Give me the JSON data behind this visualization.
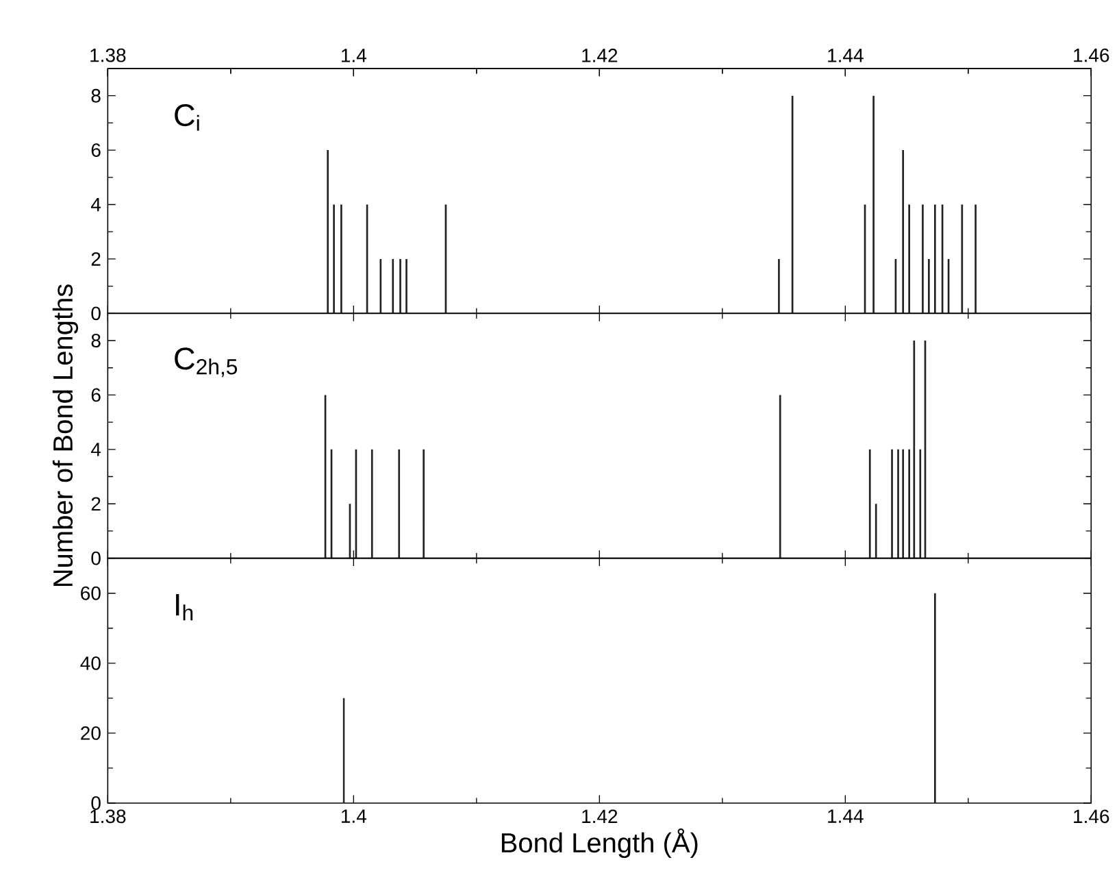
{
  "chart_data": [
    {
      "type": "bar",
      "annotations": [
        "C$_{i}$"
      ],
      "color": "#222222",
      "x": [
        1.3979,
        1.3984,
        1.399,
        1.4011,
        1.4022,
        1.4032,
        1.4038,
        1.4043,
        1.4075,
        1.4346,
        1.4357,
        1.4416,
        1.4423,
        1.4441,
        1.4447,
        1.4452,
        1.4463,
        1.4468,
        1.4473,
        1.4479,
        1.4484,
        1.4495,
        1.4506
      ],
      "values": [
        6,
        4,
        4,
        4,
        2,
        2,
        2,
        2,
        4,
        2,
        8,
        4,
        8,
        2,
        6,
        4,
        4,
        2,
        4,
        4,
        2,
        4,
        4
      ],
      "xlim": [
        1.38,
        1.46
      ],
      "xticks": [
        1.38,
        1.4,
        1.42,
        1.44,
        1.46
      ],
      "x2lim": [
        1.38,
        1.46
      ],
      "x2ticks": [
        1.38,
        1.4,
        1.42,
        1.44,
        1.46
      ],
      "ylim": [
        0,
        9
      ],
      "yticks": [
        0,
        2,
        4,
        6,
        8
      ],
      "tick_labels": "y"
    },
    {
      "type": "bar",
      "annotations": [
        "C$_{2h,5}$"
      ],
      "color": "#222222",
      "ylabel": "Number of Bond Lengths",
      "x": [
        1.3977,
        1.3982,
        1.3997,
        1.4002,
        1.4015,
        1.4037,
        1.4057,
        1.4347,
        1.442,
        1.4425,
        1.4438,
        1.4443,
        1.4447,
        1.4452,
        1.4456,
        1.4461,
        1.4465
      ],
      "values": [
        6,
        4,
        2,
        4,
        4,
        4,
        4,
        6,
        4,
        2,
        4,
        4,
        4,
        4,
        8,
        4,
        8
      ],
      "xlim": [
        1.38,
        1.46
      ],
      "xticks": [
        1.38,
        1.4,
        1.42,
        1.44,
        1.46
      ],
      "ylim": [
        0,
        9
      ],
      "yticks": [
        0,
        2,
        4,
        6,
        8
      ],
      "tick_labels": "y"
    },
    {
      "type": "bar",
      "annotations": [
        "I$_{h}$"
      ],
      "color": "#222222",
      "xlabel": "Bond Length (Å)",
      "x": [
        1.3992,
        1.4473
      ],
      "values": [
        30,
        60
      ],
      "xlim": [
        1.38,
        1.46
      ],
      "xticks": [
        1.38,
        1.4,
        1.42,
        1.44,
        1.46
      ],
      "ylim": [
        0,
        70
      ],
      "yticks": [
        0,
        20,
        40,
        60
      ]
    }
  ]
}
